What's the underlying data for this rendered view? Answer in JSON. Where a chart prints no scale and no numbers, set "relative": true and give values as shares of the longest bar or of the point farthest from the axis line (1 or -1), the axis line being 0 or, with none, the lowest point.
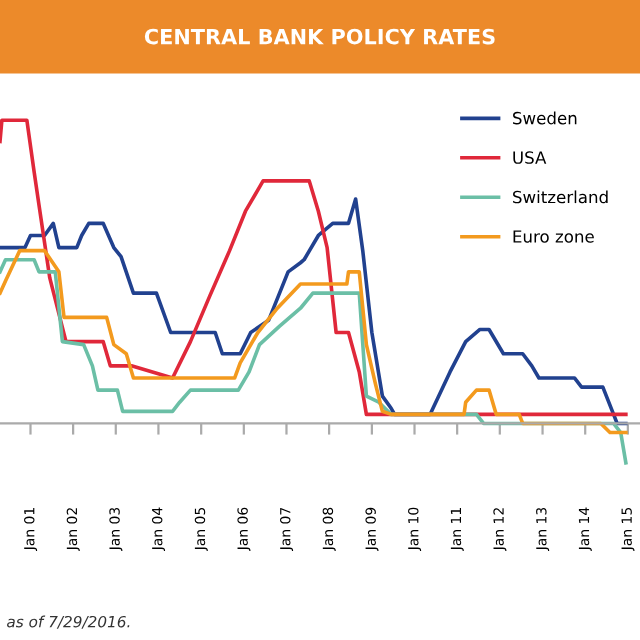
{
  "chart_data": {
    "type": "line",
    "title": "CENTRAL BANK POLICY RATES",
    "relative": true,
    "legend": "top right",
    "grid": false,
    "marker": "none",
    "line_style": "solid",
    "annotations": [
      "as of 7/29/2016."
    ],
    "xlim": [
      "2000-04-15",
      "2015-04-15"
    ],
    "xticks": [
      {
        "value": "2001-01-01",
        "label": "Jan 01"
      },
      {
        "value": "2002-01-01",
        "label": "Jan 02"
      },
      {
        "value": "2003-01-01",
        "label": "Jan 03"
      },
      {
        "value": "2004-01-01",
        "label": "Jan 04"
      },
      {
        "value": "2005-01-01",
        "label": "Jan 05"
      },
      {
        "value": "2006-01-01",
        "label": "Jan 06"
      },
      {
        "value": "2007-01-01",
        "label": "Jan 07"
      },
      {
        "value": "2008-01-01",
        "label": "Jan 08"
      },
      {
        "value": "2009-01-01",
        "label": "Jan 09"
      },
      {
        "value": "2010-01-01",
        "label": "Jan 10"
      },
      {
        "value": "2011-01-01",
        "label": "Jan 11"
      },
      {
        "value": "2012-01-01",
        "label": "Jan 12"
      },
      {
        "value": "2013-01-01",
        "label": "Jan 13"
      },
      {
        "value": "2014-01-01",
        "label": "Jan 14"
      },
      {
        "value": "2015-01-01",
        "label": "Jan 15"
      }
    ],
    "series": [
      {
        "name": "Sweden",
        "color": "#21418f",
        "x": [
          "2000-04-15",
          "2000-11-15",
          "2001-01-01",
          "2001-05-01",
          "2001-07-15",
          "2001-09-01",
          "2002-02-01",
          "2002-03-15",
          "2002-05-15",
          "2002-09-15",
          "2002-12-15",
          "2003-02-15",
          "2003-06-01",
          "2003-12-15",
          "2004-04-15",
          "2005-05-01",
          "2005-07-01",
          "2005-12-01",
          "2006-03-01",
          "2006-08-01",
          "2007-01-15",
          "2007-05-01",
          "2007-06-01",
          "2007-10-01",
          "2008-02-01",
          "2008-06-15",
          "2008-08-15",
          "2008-10-15",
          "2009-01-01",
          "2009-04-01",
          "2009-06-15",
          "2009-07-15",
          "2010-05-15",
          "2010-11-01",
          "2011-03-15",
          "2011-07-15",
          "2011-10-01",
          "2012-02-01",
          "2012-07-15",
          "2012-10-01",
          "2012-12-01",
          "2013-10-01",
          "2013-12-01",
          "2014-06-01",
          "2014-09-01",
          "2014-10-01",
          "2014-12-15"
        ],
        "values": [
          0.58,
          0.58,
          0.62,
          0.62,
          0.66,
          0.58,
          0.58,
          0.62,
          0.66,
          0.66,
          0.58,
          0.55,
          0.43,
          0.43,
          0.3,
          0.3,
          0.23,
          0.23,
          0.3,
          0.34,
          0.5,
          0.53,
          0.54,
          0.62,
          0.66,
          0.66,
          0.74,
          0.57,
          0.3,
          0.09,
          0.05,
          0.03,
          0.03,
          0.17,
          0.27,
          0.31,
          0.31,
          0.23,
          0.23,
          0.19,
          0.15,
          0.15,
          0.12,
          0.12,
          0.03,
          0.0,
          0.0
        ]
      },
      {
        "name": "USA",
        "color": "#e0283a",
        "x": [
          "2000-04-15",
          "2000-05-01",
          "2000-12-01",
          "2001-02-01",
          "2001-03-15",
          "2001-06-15",
          "2001-11-01",
          "2002-09-15",
          "2002-11-15",
          "2003-05-15",
          "2004-05-01",
          "2004-10-01",
          "2005-03-15",
          "2005-09-01",
          "2006-01-15",
          "2006-06-15",
          "2007-07-15",
          "2007-10-01",
          "2007-12-15",
          "2008-03-01",
          "2008-06-15",
          "2008-09-15",
          "2008-11-15",
          "2008-12-01",
          "2014-12-15"
        ],
        "values": [
          0.93,
          1.0,
          1.0,
          0.83,
          0.72,
          0.48,
          0.27,
          0.27,
          0.19,
          0.19,
          0.15,
          0.27,
          0.42,
          0.57,
          0.7,
          0.8,
          0.8,
          0.7,
          0.58,
          0.3,
          0.3,
          0.17,
          0.03,
          0.03,
          0.03
        ]
      },
      {
        "name": "Switzerland",
        "color": "#6bbfa6",
        "x": [
          "2000-04-15",
          "2000-06-01",
          "2001-02-01",
          "2001-03-15",
          "2001-08-01",
          "2001-10-01",
          "2002-04-01",
          "2002-06-15",
          "2002-08-01",
          "2003-01-15",
          "2003-03-01",
          "2004-05-01",
          "2004-07-01",
          "2004-10-01",
          "2005-11-15",
          "2006-02-15",
          "2006-05-15",
          "2006-11-01",
          "2007-05-01",
          "2007-08-15",
          "2008-09-15",
          "2008-11-15",
          "2009-03-01",
          "2009-06-15",
          "2011-06-15",
          "2011-08-15",
          "2014-09-01",
          "2014-11-01",
          "2014-12-15"
        ],
        "values": [
          0.5,
          0.54,
          0.54,
          0.5,
          0.5,
          0.27,
          0.26,
          0.19,
          0.11,
          0.11,
          0.04,
          0.04,
          0.07,
          0.11,
          0.11,
          0.17,
          0.26,
          0.32,
          0.38,
          0.43,
          0.43,
          0.09,
          0.07,
          0.03,
          0.03,
          0.0,
          0.0,
          -0.03,
          -0.13
        ]
      },
      {
        "name": "Euro zone",
        "color": "#f39a1e",
        "x": [
          "2000-04-15",
          "2000-06-01",
          "2000-10-01",
          "2001-05-01",
          "2001-09-01",
          "2001-10-15",
          "2002-10-15",
          "2002-12-15",
          "2003-04-01",
          "2003-06-01",
          "2005-10-15",
          "2005-12-01",
          "2006-05-01",
          "2006-10-15",
          "2007-05-01",
          "2007-07-01",
          "2008-06-01",
          "2008-06-15",
          "2008-09-15",
          "2008-11-15",
          "2009-02-01",
          "2009-04-01",
          "2009-06-15",
          "2011-03-01",
          "2011-03-15",
          "2011-06-15",
          "2011-10-01",
          "2011-12-01",
          "2012-06-15",
          "2012-07-15",
          "2014-05-15",
          "2014-08-01",
          "2014-12-15"
        ],
        "values": [
          0.43,
          0.47,
          0.57,
          0.57,
          0.5,
          0.35,
          0.35,
          0.26,
          0.23,
          0.15,
          0.15,
          0.2,
          0.3,
          0.38,
          0.46,
          0.46,
          0.46,
          0.5,
          0.5,
          0.26,
          0.13,
          0.04,
          0.03,
          0.03,
          0.07,
          0.11,
          0.11,
          0.03,
          0.03,
          0.0,
          0.0,
          -0.03,
          -0.03
        ]
      }
    ]
  }
}
